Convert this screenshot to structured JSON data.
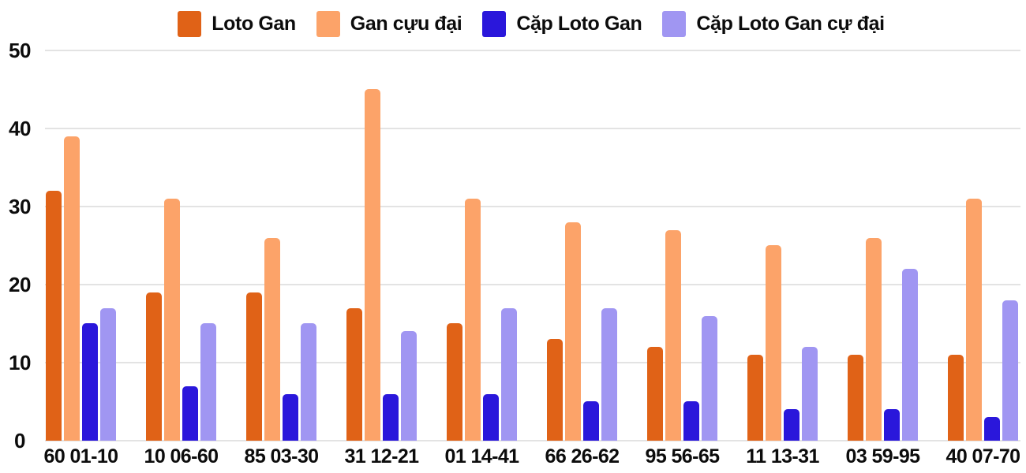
{
  "chart_data": {
    "type": "bar",
    "title": "",
    "xlabel": "",
    "ylabel": "",
    "categories": [
      "60 01-10",
      "10 06-60",
      "85 03-30",
      "31 12-21",
      "01 14-41",
      "66 26-62",
      "95 56-65",
      "11 13-31",
      "03 59-95",
      "40 07-70"
    ],
    "series": [
      {
        "name": "Loto Gan",
        "color": "#e06217",
        "values": [
          32,
          19,
          19,
          17,
          15,
          13,
          12,
          11,
          11,
          11
        ]
      },
      {
        "name": "Gan cựu đại",
        "color": "#fca369",
        "values": [
          39,
          31,
          26,
          45,
          31,
          28,
          27,
          25,
          26,
          31
        ]
      },
      {
        "name": "Cặp Loto Gan",
        "color": "#2a17db",
        "values": [
          15,
          7,
          6,
          6,
          6,
          5,
          5,
          4,
          4,
          3
        ]
      },
      {
        "name": "Cặp Loto Gan cự đại",
        "color": "#a096f2",
        "values": [
          17,
          15,
          15,
          14,
          17,
          17,
          16,
          12,
          22,
          18
        ]
      }
    ],
    "ylim": [
      0,
      50
    ],
    "yticks": [
      0,
      10,
      20,
      30,
      40,
      50
    ],
    "grid": true,
    "legend_position": "top",
    "background_color": "#ffffff",
    "gridline_color": "#e3e3e3",
    "text_color": "#0c0c0c"
  }
}
